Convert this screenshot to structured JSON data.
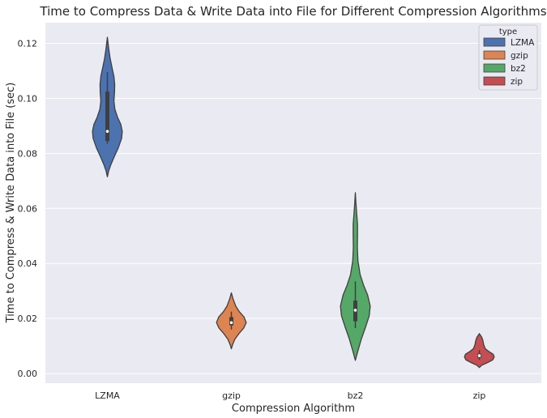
{
  "chart_data": {
    "type": "violin",
    "title": "Time to Compress Data & Write Data into File for Different Compression Algorithms",
    "xlabel": "Compression Algorithm",
    "ylabel": "Time to Compress & Write Data into File (sec)",
    "categories": [
      "LZMA",
      "gzip",
      "bz2",
      "zip"
    ],
    "ylim": [
      -0.0035,
      0.1275
    ],
    "yticks": [
      "0.00",
      "0.02",
      "0.04",
      "0.06",
      "0.08",
      "0.10",
      "0.12"
    ],
    "grid": true,
    "legend": {
      "title": "type",
      "placement": "top-right",
      "entries": [
        "LZMA",
        "gzip",
        "bz2",
        "zip"
      ]
    },
    "series": [
      {
        "name": "LZMA",
        "color": "#4c72b0",
        "min": 0.0715,
        "q1": 0.0845,
        "median": 0.088,
        "q3": 0.1025,
        "max": 0.1222,
        "whisker_low": 0.0835,
        "whisker_high": 0.1095,
        "profile": [
          [
            0.0715,
            0.0
          ],
          [
            0.0735,
            0.06
          ],
          [
            0.076,
            0.18
          ],
          [
            0.079,
            0.36
          ],
          [
            0.082,
            0.55
          ],
          [
            0.0855,
            0.72
          ],
          [
            0.088,
            0.75
          ],
          [
            0.0905,
            0.68
          ],
          [
            0.093,
            0.52
          ],
          [
            0.096,
            0.38
          ],
          [
            0.099,
            0.33
          ],
          [
            0.102,
            0.36
          ],
          [
            0.105,
            0.37
          ],
          [
            0.108,
            0.33
          ],
          [
            0.111,
            0.24
          ],
          [
            0.1145,
            0.14
          ],
          [
            0.118,
            0.07
          ],
          [
            0.1222,
            0.0
          ]
        ]
      },
      {
        "name": "gzip",
        "color": "#dd8452",
        "min": 0.009,
        "q1": 0.0175,
        "median": 0.0185,
        "q3": 0.0205,
        "max": 0.0293,
        "whisker_low": 0.016,
        "whisker_high": 0.0225,
        "profile": [
          [
            0.009,
            0.0
          ],
          [
            0.0105,
            0.06
          ],
          [
            0.0125,
            0.18
          ],
          [
            0.0145,
            0.38
          ],
          [
            0.0165,
            0.62
          ],
          [
            0.0185,
            0.75
          ],
          [
            0.0205,
            0.64
          ],
          [
            0.0225,
            0.4
          ],
          [
            0.0245,
            0.22
          ],
          [
            0.027,
            0.09
          ],
          [
            0.0293,
            0.0
          ]
        ]
      },
      {
        "name": "bz2",
        "color": "#55a868",
        "min": 0.0048,
        "q1": 0.019,
        "median": 0.023,
        "q3": 0.0265,
        "max": 0.0657,
        "whisker_low": 0.0165,
        "whisker_high": 0.0335,
        "profile": [
          [
            0.0048,
            0.0
          ],
          [
            0.008,
            0.12
          ],
          [
            0.0125,
            0.3
          ],
          [
            0.017,
            0.52
          ],
          [
            0.021,
            0.7
          ],
          [
            0.0245,
            0.75
          ],
          [
            0.0285,
            0.62
          ],
          [
            0.032,
            0.42
          ],
          [
            0.036,
            0.24
          ],
          [
            0.041,
            0.13
          ],
          [
            0.046,
            0.1
          ],
          [
            0.05,
            0.11
          ],
          [
            0.054,
            0.11
          ],
          [
            0.058,
            0.07
          ],
          [
            0.062,
            0.03
          ],
          [
            0.0657,
            0.0
          ]
        ]
      },
      {
        "name": "zip",
        "color": "#c44e52",
        "min": 0.0022,
        "q1": 0.0058,
        "median": 0.0065,
        "q3": 0.0072,
        "max": 0.0145,
        "whisker_low": 0.005,
        "whisker_high": 0.0085,
        "profile": [
          [
            0.0022,
            0.0
          ],
          [
            0.003,
            0.12
          ],
          [
            0.004,
            0.42
          ],
          [
            0.005,
            0.68
          ],
          [
            0.006,
            0.75
          ],
          [
            0.007,
            0.7
          ],
          [
            0.008,
            0.48
          ],
          [
            0.009,
            0.3
          ],
          [
            0.0105,
            0.22
          ],
          [
            0.012,
            0.18
          ],
          [
            0.0132,
            0.12
          ],
          [
            0.0145,
            0.0
          ]
        ]
      }
    ]
  }
}
